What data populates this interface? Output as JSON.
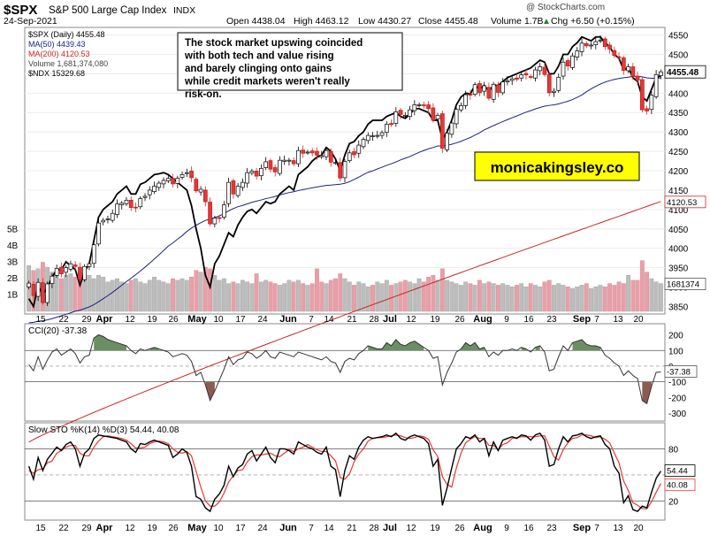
{
  "chart_data": {
    "type": "candlestick",
    "header": {
      "symbol": "$SPX",
      "name": "S&P 500 Large Cap Index",
      "exchange": "INDX",
      "date": "24-Sep-2021",
      "open": "Open 4438.04",
      "high": "High 4463.12",
      "low": "Low 4430.27",
      "close": "Close 4455.48",
      "volume": "Volume 1.7B",
      "change": "Chg +6.50 (+0.15%)",
      "change_arrow": "▲",
      "watermark": "@ StockCharts.com"
    },
    "legend": [
      {
        "label": "$SPX (Daily) 4455.48",
        "color": "#000000"
      },
      {
        "label": "MA(50) 4439.43",
        "color": "#1a237e"
      },
      {
        "label": "MA(200) 4120.53",
        "color": "#c62828"
      },
      {
        "label": "Volume 1,681,374,080",
        "color": "#777777"
      },
      {
        "label": "$NDX 15329.68",
        "color": "#000000"
      }
    ],
    "annotation": "The stock market upswing coincided with both tech and value rising and barely clinging onto gains while credit markets weren't really risk-on.",
    "brand": "monicakingsley.co",
    "price_axis": {
      "ticks": [
        "4550",
        "4500",
        "4450",
        "4400",
        "4350",
        "4300",
        "4250",
        "4200",
        "4150",
        "4100",
        "4050",
        "4000",
        "3950",
        "3900",
        "3850"
      ],
      "ylim": [
        3835,
        4565
      ],
      "last_price_label": "4455.48",
      "ma200_label": "4120.53"
    },
    "volume_axis": {
      "ticks": [
        "5B",
        "4B",
        "3B",
        "2B",
        "1B"
      ],
      "last_label": "1681374"
    },
    "x_labels": [
      "15",
      "22",
      "29",
      "Apr",
      "12",
      "19",
      "26",
      "May",
      "10",
      "17",
      "24",
      "Jun",
      "7",
      "14",
      "21",
      "28",
      "Jul",
      "12",
      "19",
      "26",
      "Aug",
      "9",
      "16",
      "23",
      "Sep",
      "7",
      "13",
      "20"
    ],
    "month_labels": [
      "Apr",
      "May",
      "Jun",
      "Jul",
      "Aug",
      "Sep"
    ],
    "spx_close": [
      3910,
      3878,
      3912,
      3860,
      3908,
      3928,
      3948,
      3934,
      3950,
      3960,
      3953,
      3920,
      3953,
      3960,
      4009,
      4065,
      4072,
      4076,
      4090,
      4114,
      4116,
      4124,
      4105,
      4105,
      4128,
      4134,
      4150,
      4160,
      4168,
      4175,
      4180,
      4166,
      4181,
      4190,
      4195,
      4182,
      4148,
      4152,
      4120,
      4063,
      4078,
      4078,
      4112,
      4170,
      4140,
      4160,
      4170,
      4195,
      4199,
      4186,
      4206,
      4223,
      4204,
      4197,
      4227,
      4227,
      4227,
      4218,
      4252,
      4245,
      4248,
      4246,
      4240,
      4239,
      4252,
      4222,
      4221,
      4181,
      4224,
      4246,
      4241,
      4266,
      4281,
      4291,
      4290,
      4291,
      4298,
      4320,
      4319,
      4352,
      4345,
      4343,
      4357,
      4370,
      4370,
      4369,
      4360,
      4330,
      4343,
      4258,
      4297,
      4323,
      4358,
      4368,
      4396,
      4395,
      4422,
      4401,
      4419,
      4387,
      4423,
      4402,
      4429,
      4432,
      4437,
      4436,
      4447,
      4447,
      4442,
      4460,
      4468,
      4448,
      4401,
      4405,
      4441,
      4480,
      4470,
      4496,
      4509,
      4529,
      4522,
      4524,
      4533,
      4537,
      4520,
      4514,
      4497,
      4493,
      4459,
      4468,
      4443,
      4433,
      4357,
      4354,
      4395,
      4448,
      4455
    ],
    "ma50": {
      "start": 3830,
      "end": 4439.43
    },
    "ma200": {
      "start": 3500,
      "end": 4120.53
    },
    "ndx_path": [
      3870,
      3850,
      3905,
      3880,
      3900,
      3925,
      3945,
      3945,
      3965,
      3955,
      3945,
      3905,
      3940,
      3960,
      4020,
      4080,
      4100,
      4110,
      4120,
      4140,
      4150,
      4160,
      4140,
      4140,
      4165,
      4170,
      4180,
      4190,
      4192,
      4195,
      4190,
      4180,
      4170,
      4160,
      4150,
      4110,
      4050,
      4000,
      3930,
      3900,
      3960,
      3980,
      4010,
      4040,
      4030,
      4060,
      4080,
      4095,
      4100,
      4090,
      4105,
      4120,
      4115,
      4120,
      4140,
      4150,
      4160,
      4150,
      4190,
      4200,
      4210,
      4225,
      4235,
      4240,
      4260,
      4250,
      4230,
      4200,
      4240,
      4270,
      4275,
      4290,
      4300,
      4320,
      4330,
      4330,
      4330,
      4340,
      4345,
      4350,
      4340,
      4335,
      4345,
      4360,
      4360,
      4355,
      4350,
      4330,
      4330,
      4280,
      4300,
      4330,
      4370,
      4390,
      4400,
      4398,
      4420,
      4410,
      4420,
      4405,
      4420,
      4420,
      4430,
      4440,
      4445,
      4450,
      4455,
      4460,
      4465,
      4475,
      4485,
      4480,
      4450,
      4450,
      4470,
      4500,
      4500,
      4520,
      4530,
      4545,
      4540,
      4535,
      4545,
      4545,
      4530,
      4520,
      4500,
      4490,
      4460,
      4465,
      4440,
      4430,
      4390,
      4380,
      4410,
      4440,
      4445
    ],
    "volume_billions": [
      2.8,
      2.5,
      2.6,
      3.0,
      2.7,
      2.4,
      2.2,
      2.0,
      2.2,
      2.3,
      2.1,
      2.4,
      2.3,
      2.2,
      2.0,
      2.2,
      2.1,
      1.8,
      1.9,
      2.0,
      1.8,
      1.7,
      1.9,
      2.0,
      1.8,
      1.7,
      1.9,
      2.1,
      1.9,
      1.8,
      1.7,
      2.0,
      1.9,
      2.0,
      1.9,
      2.1,
      2.5,
      2.4,
      2.7,
      2.6,
      2.2,
      1.9,
      2.0,
      1.7,
      1.8,
      1.7,
      1.9,
      1.8,
      1.7,
      2.3,
      1.8,
      1.9,
      1.8,
      1.7,
      1.6,
      1.7,
      1.9,
      1.8,
      1.9,
      1.7,
      1.6,
      1.7,
      2.6,
      1.8,
      1.7,
      1.9,
      2.0,
      2.3,
      2.0,
      1.8,
      1.6,
      1.8,
      1.7,
      1.5,
      1.6,
      1.8,
      1.7,
      1.9,
      1.6,
      1.7,
      1.8,
      1.9,
      1.8,
      1.7,
      2.0,
      1.8,
      2.1,
      2.2,
      1.9,
      2.6,
      1.9,
      1.8,
      1.7,
      1.6,
      1.8,
      1.7,
      1.6,
      1.9,
      1.7,
      1.8,
      1.7,
      1.6,
      1.7,
      1.6,
      1.5,
      1.6,
      1.7,
      1.5,
      1.7,
      1.6,
      1.5,
      1.8,
      1.9,
      1.6,
      1.7,
      1.6,
      1.5,
      1.4,
      1.5,
      1.6,
      1.7,
      1.4,
      1.5,
      1.6,
      1.5,
      1.7,
      1.6,
      1.8,
      1.7,
      2.2,
      1.9,
      1.9,
      3.1,
      2.4,
      2.0,
      1.8,
      1.7
    ],
    "cci": {
      "label": "CCI(20) -37.38",
      "ticks": [
        "200",
        "100",
        "0",
        "-100",
        "-200",
        "-300"
      ],
      "ylim": [
        -340,
        260
      ],
      "last_label": "-37.38",
      "values": [
        10,
        -30,
        60,
        -20,
        40,
        90,
        110,
        70,
        90,
        110,
        80,
        20,
        60,
        70,
        180,
        200,
        190,
        170,
        160,
        150,
        140,
        130,
        100,
        80,
        110,
        100,
        110,
        120,
        110,
        100,
        90,
        60,
        70,
        80,
        70,
        30,
        -60,
        -40,
        -120,
        -220,
        -160,
        -90,
        -20,
        60,
        10,
        40,
        50,
        90,
        80,
        50,
        70,
        100,
        60,
        50,
        90,
        80,
        70,
        60,
        90,
        80,
        70,
        60,
        50,
        40,
        60,
        30,
        20,
        -40,
        30,
        50,
        40,
        80,
        100,
        130,
        120,
        110,
        110,
        150,
        130,
        170,
        140,
        130,
        150,
        160,
        140,
        120,
        100,
        50,
        60,
        -120,
        -40,
        20,
        90,
        110,
        150,
        130,
        150,
        110,
        120,
        60,
        90,
        70,
        100,
        100,
        110,
        100,
        120,
        110,
        90,
        120,
        130,
        90,
        -30,
        -20,
        60,
        130,
        100,
        150,
        160,
        170,
        140,
        130,
        130,
        120,
        70,
        50,
        20,
        0,
        -60,
        -30,
        -60,
        -80,
        -220,
        -240,
        -130,
        -40,
        -37
      ]
    },
    "sto": {
      "label": "Slow STO %K(14) %D(3) 54.44, 40.08",
      "ticks": [
        "80",
        "20"
      ],
      "ylim": [
        0,
        108
      ],
      "last_k_label": "54.44",
      "last_d_label": "40.08",
      "k": [
        60,
        45,
        70,
        55,
        68,
        75,
        82,
        78,
        85,
        88,
        80,
        60,
        75,
        80,
        92,
        96,
        95,
        94,
        93,
        92,
        90,
        88,
        80,
        76,
        86,
        85,
        88,
        90,
        88,
        86,
        84,
        70,
        74,
        80,
        76,
        60,
        25,
        22,
        12,
        8,
        22,
        28,
        38,
        60,
        48,
        58,
        62,
        74,
        78,
        66,
        74,
        82,
        70,
        64,
        80,
        80,
        78,
        74,
        88,
        85,
        82,
        80,
        76,
        74,
        82,
        60,
        56,
        25,
        55,
        72,
        68,
        82,
        90,
        94,
        92,
        93,
        94,
        96,
        94,
        98,
        92,
        90,
        94,
        96,
        94,
        92,
        86,
        60,
        68,
        15,
        35,
        58,
        80,
        86,
        94,
        92,
        96,
        88,
        92,
        72,
        88,
        78,
        90,
        92,
        94,
        92,
        96,
        95,
        90,
        96,
        98,
        90,
        60,
        62,
        80,
        94,
        88,
        95,
        96,
        98,
        94,
        92,
        94,
        95,
        85,
        80,
        60,
        52,
        18,
        26,
        10,
        8,
        14,
        12,
        30,
        46,
        54.44
      ],
      "d": [
        55,
        52,
        56,
        57,
        64,
        66,
        75,
        78,
        82,
        84,
        84,
        75,
        72,
        72,
        82,
        89,
        94,
        95,
        94,
        93,
        92,
        90,
        86,
        81,
        81,
        82,
        86,
        88,
        89,
        88,
        86,
        80,
        76,
        75,
        77,
        72,
        54,
        36,
        20,
        14,
        14,
        19,
        29,
        42,
        49,
        55,
        56,
        65,
        71,
        73,
        73,
        74,
        75,
        72,
        71,
        75,
        79,
        77,
        80,
        82,
        85,
        82,
        79,
        77,
        77,
        72,
        66,
        47,
        45,
        51,
        65,
        74,
        80,
        89,
        92,
        93,
        93,
        94,
        95,
        96,
        95,
        93,
        92,
        93,
        95,
        94,
        91,
        79,
        71,
        48,
        39,
        36,
        58,
        75,
        87,
        91,
        94,
        92,
        92,
        84,
        84,
        79,
        85,
        87,
        92,
        93,
        94,
        94,
        94,
        94,
        95,
        95,
        83,
        71,
        67,
        79,
        87,
        92,
        93,
        96,
        96,
        95,
        93,
        94,
        91,
        87,
        75,
        64,
        43,
        32,
        18,
        15,
        11,
        11,
        19,
        30,
        40.08
      ]
    }
  }
}
